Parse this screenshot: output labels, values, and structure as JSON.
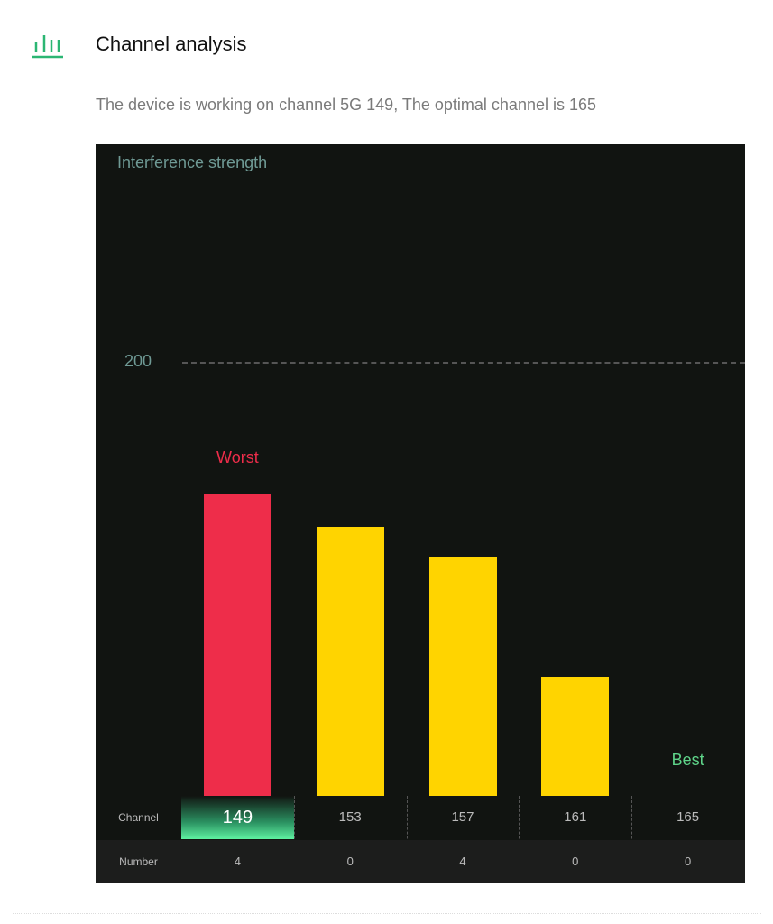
{
  "header": {
    "title": "Channel analysis",
    "icon": "bar-chart-icon",
    "subtitle": "The device is working on channel 5G 149, The optimal channel is 165"
  },
  "colors": {
    "accent": "#2bb673",
    "worst": "#ee2d4a",
    "normal": "#ffd400",
    "best": "#5fd58a"
  },
  "chart_data": {
    "type": "bar",
    "ylabel": "Interference strength",
    "ylim": [
      0,
      300
    ],
    "yticks": [
      "200"
    ],
    "grid": "dashed line at 200",
    "categories": [
      "149",
      "153",
      "157",
      "161",
      "165"
    ],
    "values": [
      139,
      124,
      110,
      55,
      0
    ],
    "annotations": {
      "worst": "Worst",
      "best": "Best"
    },
    "table": {
      "row_labels": [
        "Channel",
        "Number"
      ],
      "numbers": [
        "4",
        "0",
        "4",
        "0",
        "0"
      ]
    },
    "current_channel": "149"
  }
}
